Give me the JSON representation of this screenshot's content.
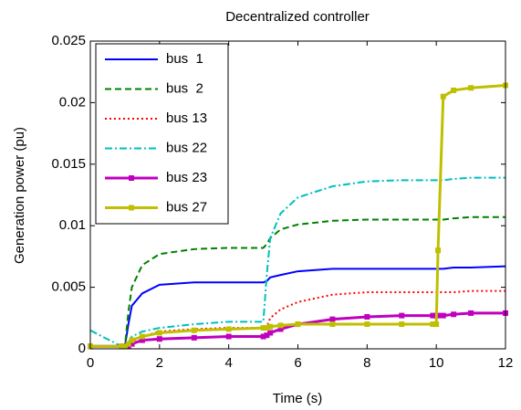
{
  "chart_data": {
    "type": "line",
    "title": "Decentralized controller",
    "x_label": "Time (s)",
    "y_label": "Generation power (pu)",
    "x": [
      0,
      0.9,
      1.0,
      1.1,
      1.2,
      1.5,
      2,
      3,
      4,
      5,
      5.1,
      5.2,
      5.5,
      6,
      7,
      8,
      9,
      9.9,
      10,
      10.05,
      10.2,
      10.5,
      11,
      12
    ],
    "series": [
      {
        "name": "bus  1",
        "color": "#0000ff",
        "dash": "solid",
        "values": [
          0.0002,
          0.0002,
          0.0002,
          0.002,
          0.0035,
          0.0045,
          0.0052,
          0.0054,
          0.0054,
          0.0054,
          0.0055,
          0.0058,
          0.006,
          0.0063,
          0.0065,
          0.0065,
          0.0065,
          0.0065,
          0.0065,
          0.0065,
          0.0065,
          0.0066,
          0.0066,
          0.0067
        ]
      },
      {
        "name": "bus  2",
        "color": "#008000",
        "dash": "dashed",
        "values": [
          0.0002,
          0.0002,
          0.0002,
          0.003,
          0.005,
          0.0068,
          0.0077,
          0.0081,
          0.0082,
          0.0082,
          0.0085,
          0.009,
          0.0097,
          0.0101,
          0.0104,
          0.0105,
          0.0105,
          0.0105,
          0.0105,
          0.0105,
          0.0105,
          0.0106,
          0.0107,
          0.0107
        ]
      },
      {
        "name": "bus 13",
        "color": "#ff0000",
        "dash": "dotted",
        "values": [
          0.0002,
          0.0002,
          0.0002,
          0.0003,
          0.0006,
          0.001,
          0.0014,
          0.0016,
          0.0017,
          0.0017,
          0.0018,
          0.0025,
          0.0032,
          0.0038,
          0.0044,
          0.0046,
          0.0046,
          0.0046,
          0.0046,
          0.0046,
          0.0046,
          0.0046,
          0.0047,
          0.0047
        ]
      },
      {
        "name": "bus 22",
        "color": "#00bfbf",
        "dash": "dashdot",
        "values": [
          0.0015,
          0.0002,
          0.0002,
          0.0005,
          0.001,
          0.0014,
          0.0017,
          0.002,
          0.0022,
          0.0022,
          0.006,
          0.009,
          0.011,
          0.0123,
          0.0132,
          0.0136,
          0.0137,
          0.0137,
          0.0137,
          0.0137,
          0.0137,
          0.0138,
          0.0139,
          0.0139
        ]
      },
      {
        "name": "bus 23",
        "color": "#bf00bf",
        "dash": "solid",
        "marker": "square",
        "values": [
          0.0002,
          0.0002,
          0.0002,
          0.0002,
          0.0004,
          0.0007,
          0.0008,
          0.0009,
          0.001,
          0.001,
          0.0011,
          0.0013,
          0.0016,
          0.002,
          0.0024,
          0.0026,
          0.0027,
          0.0027,
          0.0027,
          0.0027,
          0.0027,
          0.0028,
          0.0029,
          0.0029
        ]
      },
      {
        "name": "bus 27",
        "color": "#bfbf00",
        "dash": "solid",
        "marker": "square",
        "values": [
          0.0002,
          0.0002,
          0.0002,
          0.0004,
          0.0007,
          0.001,
          0.0013,
          0.0015,
          0.0016,
          0.0017,
          0.0017,
          0.0018,
          0.0019,
          0.002,
          0.002,
          0.002,
          0.002,
          0.002,
          0.002,
          0.008,
          0.0205,
          0.021,
          0.0212,
          0.0214
        ]
      }
    ],
    "xlim": [
      0,
      12
    ],
    "xticks": [
      0,
      2,
      4,
      6,
      8,
      10,
      12
    ],
    "ylim": [
      0,
      0.025
    ],
    "yticks": [
      0,
      0.005,
      0.01,
      0.015,
      0.02,
      0.025
    ],
    "legend": "upper-left"
  }
}
